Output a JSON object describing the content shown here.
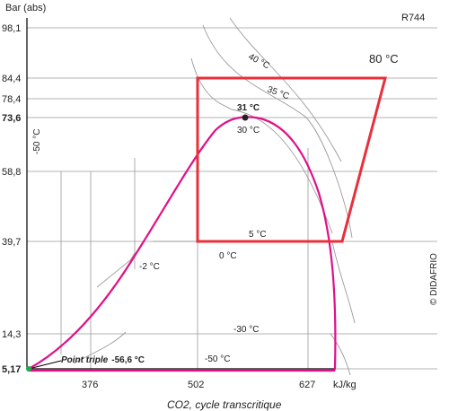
{
  "chart_data": {
    "type": "diagram",
    "refrigerant": "R744",
    "y_axis": {
      "label": "Bar (abs)",
      "ticks": [
        "98,1",
        "84,4",
        "78,4",
        "73,6",
        "58,8",
        "39,7",
        "14,3",
        "5,17"
      ]
    },
    "x_axis": {
      "unit": "kJ/kg",
      "ticks": [
        "376",
        "502",
        "627"
      ]
    },
    "isotherm_labels": {
      "t40": "40 °C",
      "t35": "35 °C",
      "t30": "30 °C",
      "t0": "0 °C",
      "tm2": "-2 °C",
      "tm30": "-30 °C",
      "tm50": "-50 °C",
      "tm50_vertical": "-50 °C"
    },
    "cycle_labels": {
      "gas_cooler": "80 °C",
      "critical_point": "31 °C",
      "evaporation": "5 °C"
    },
    "triple_point": {
      "label": "Point triple",
      "value": "-56,6 °C"
    },
    "copyright": "© DIDAFRIO",
    "caption": "CO2, cycle transcritique",
    "colors": {
      "cycle": "#e8303a",
      "saturation": "#e0108a",
      "grid": "#9a9a9a",
      "isotherm": "#9a9a9a",
      "triple_point": "#19b04a"
    }
  }
}
